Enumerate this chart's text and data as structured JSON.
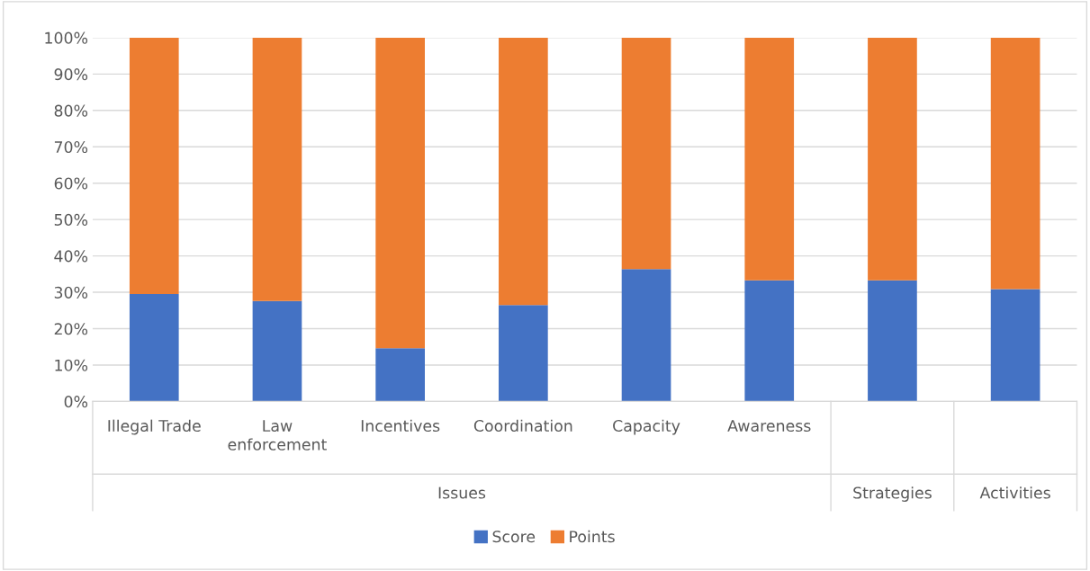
{
  "chart_data": {
    "type": "bar",
    "stacked": true,
    "categories": [
      "Illegal Trade",
      "Law\nenforcement",
      "Incentives",
      "Coordination",
      "Capacity",
      "Awareness",
      null,
      null
    ],
    "series": [
      {
        "name": "Score",
        "color": "#4472c4",
        "values": [
          29.5,
          27.6,
          14.6,
          26.5,
          36.4,
          33.3,
          33.3,
          30.9
        ]
      },
      {
        "name": "Points",
        "color": "#ed7d31",
        "values": [
          70.5,
          72.4,
          85.4,
          73.5,
          63.6,
          66.7,
          66.7,
          69.1
        ]
      }
    ],
    "annotations": [
      "Issues",
      "Strategies",
      "Activities"
    ],
    "ylim": [
      0,
      100
    ],
    "yticks": [
      {
        "value": 0,
        "label": "0%"
      },
      {
        "value": 10,
        "label": "10%"
      },
      {
        "value": 20,
        "label": "20%"
      },
      {
        "value": 30,
        "label": "30%"
      },
      {
        "value": 40,
        "label": "40%"
      },
      {
        "value": 50,
        "label": "50%"
      },
      {
        "value": 60,
        "label": "60%"
      },
      {
        "value": 70,
        "label": "70%"
      },
      {
        "value": 80,
        "label": "80%"
      },
      {
        "value": 90,
        "label": "90%"
      },
      {
        "value": 100,
        "label": "100%"
      }
    ],
    "grid": "y",
    "legend": "bottom"
  }
}
